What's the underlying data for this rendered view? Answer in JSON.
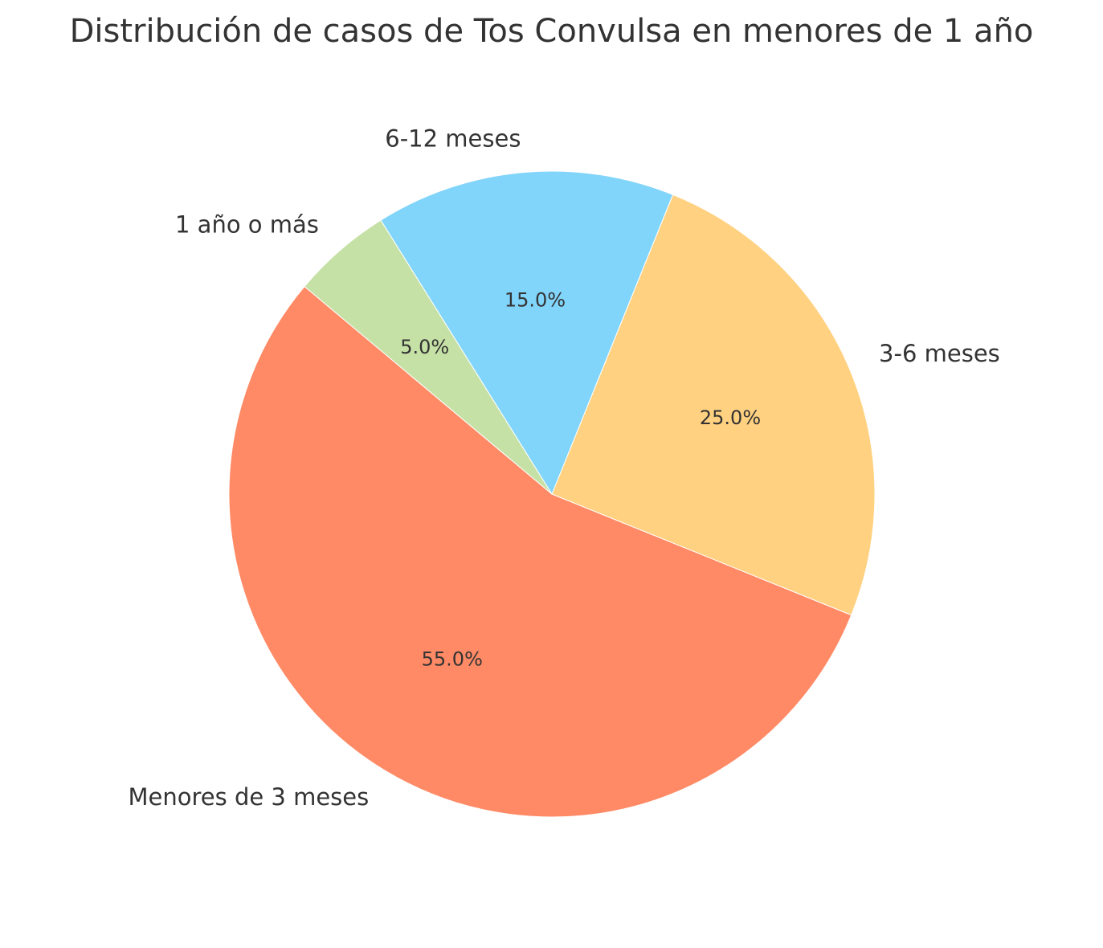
{
  "chart_data": {
    "type": "pie",
    "title": "Distribución de casos de Tos Convulsa en menores de 1 año",
    "categories": [
      "Menores de 3 meses",
      "3-6 meses",
      "6-12 meses",
      "1 año o más"
    ],
    "values": [
      55,
      25,
      15,
      5
    ],
    "value_labels": [
      "55.0%",
      "25.0%",
      "15.0%",
      "5.0%"
    ],
    "colors": [
      "#FF8A65",
      "#FFD180",
      "#81D4FA",
      "#C5E1A5"
    ],
    "start_angle_deg": 140,
    "direction": "counterclockwise",
    "legend": "none"
  }
}
